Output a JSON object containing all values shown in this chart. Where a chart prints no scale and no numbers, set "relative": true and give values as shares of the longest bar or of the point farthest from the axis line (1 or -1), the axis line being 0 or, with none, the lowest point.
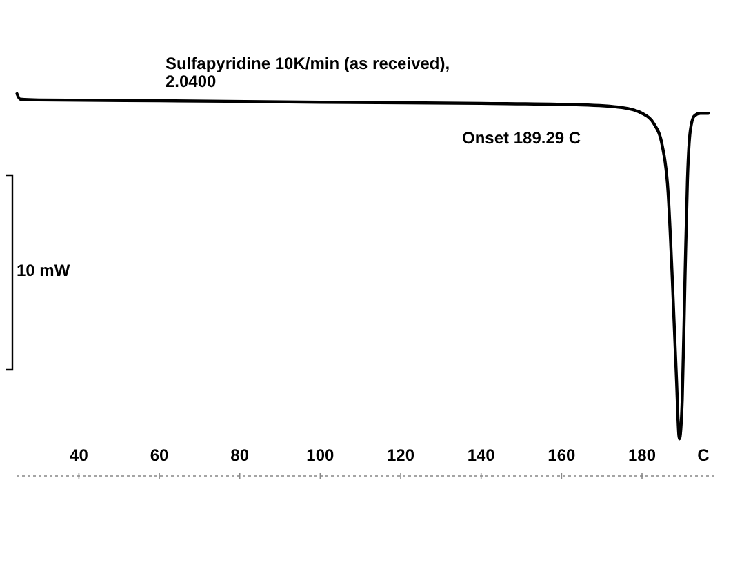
{
  "chart_data": {
    "type": "line",
    "relative": true,
    "title": "Sulfapyridine 10K/min (as received),",
    "subtitle": "2.0400",
    "xlabel": "C",
    "annotations": [
      "Onset 189.29  C",
      "10 mW"
    ],
    "xlim": [
      24.5,
      198
    ],
    "xticks": [
      40,
      60,
      80,
      100,
      120,
      140,
      160,
      180
    ],
    "x": [
      24.6,
      25.4,
      30,
      60,
      100,
      140,
      165,
      175,
      180,
      183,
      185,
      186.5,
      187.5,
      188.5,
      189.3,
      190,
      190.7,
      191.3,
      192,
      193,
      194.5,
      196.5
    ],
    "series": [
      {
        "color": "#000000",
        "values": [
          1.0,
          0.986,
          0.984,
          0.982,
          0.978,
          0.975,
          0.971,
          0.964,
          0.949,
          0.921,
          0.866,
          0.74,
          0.523,
          0.271,
          0.097,
          0.199,
          0.523,
          0.776,
          0.903,
          0.942,
          0.949,
          0.949
        ]
      }
    ]
  }
}
